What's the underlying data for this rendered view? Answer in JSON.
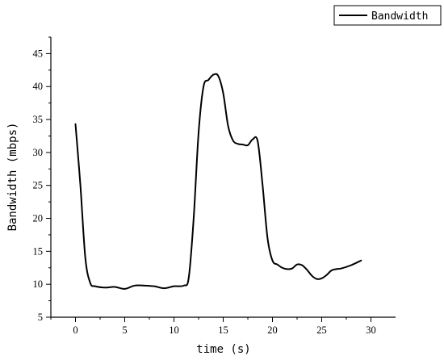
{
  "chart_data": {
    "type": "line",
    "xlabel": "time (s)",
    "ylabel": "Bandwidth (mbps)",
    "xlim": [
      -2.5,
      32.5
    ],
    "ylim": [
      5,
      47.5
    ],
    "xticks": [
      0,
      5,
      10,
      15,
      20,
      25,
      30
    ],
    "yticks": [
      5,
      10,
      15,
      20,
      25,
      30,
      35,
      40,
      45
    ],
    "legend_position": "top-right",
    "series": [
      {
        "name": "Bandwidth",
        "color": "#000000",
        "x": [
          0,
          0.5,
          1,
          1.5,
          2,
          3,
          4,
          5,
          6,
          7,
          8,
          9,
          10,
          11,
          11.5,
          12,
          12.5,
          13,
          13.5,
          14,
          14.5,
          15,
          15.5,
          16,
          16.5,
          17,
          17.5,
          18,
          18.5,
          19,
          19.5,
          20,
          20.5,
          21,
          21.5,
          22,
          22.5,
          23,
          23.5,
          24,
          24.5,
          25,
          25.5,
          26,
          26.5,
          27,
          28,
          29
        ],
        "y": [
          34.3,
          25,
          14,
          10.2,
          9.7,
          9.5,
          9.6,
          9.3,
          9.8,
          9.8,
          9.7,
          9.4,
          9.7,
          9.8,
          11,
          20,
          33,
          40,
          41,
          41.8,
          41.6,
          39,
          34,
          31.8,
          31.3,
          31.2,
          31.1,
          32,
          31.7,
          25,
          17,
          13.6,
          13,
          12.5,
          12.3,
          12.4,
          13,
          12.9,
          12.2,
          11.3,
          10.8,
          10.9,
          11.4,
          12.1,
          12.3,
          12.4,
          12.9,
          13.6
        ]
      }
    ]
  }
}
